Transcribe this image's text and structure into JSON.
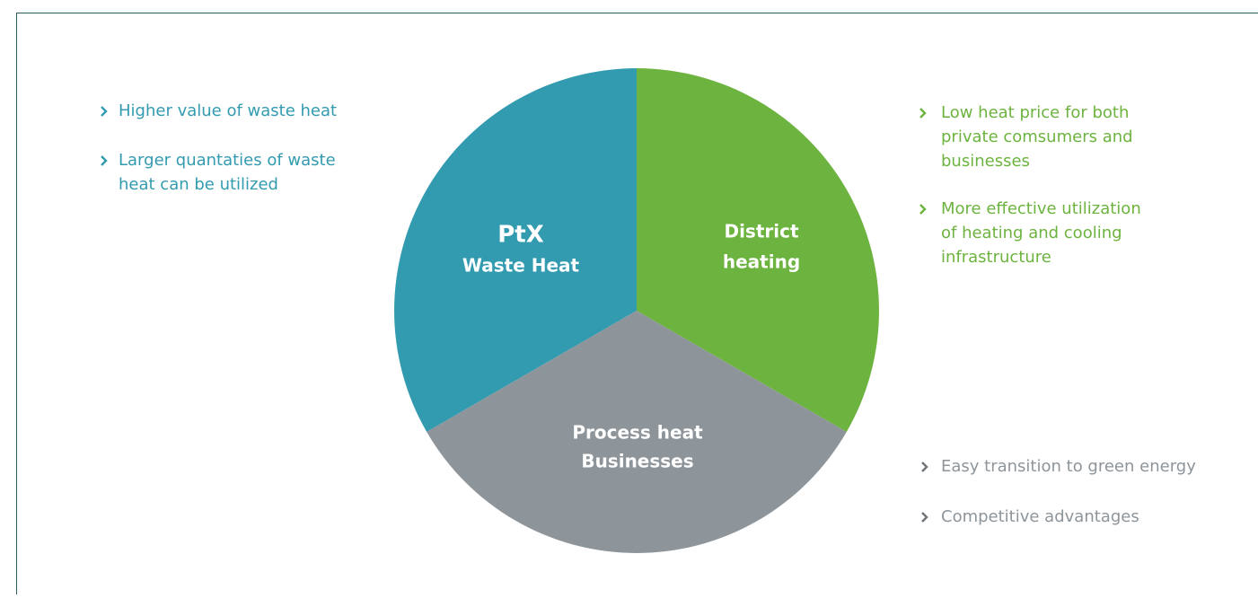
{
  "segments": [
    {
      "lines": [
        "PtX",
        "Waste Heat"
      ]
    },
    {
      "lines": [
        "District",
        "heating"
      ]
    },
    {
      "lines": [
        "Process heat",
        "Businesses"
      ]
    }
  ],
  "lists": [
    {
      "bullets": [
        [
          "Higher value of waste heat"
        ],
        [
          "Larger quantaties of waste",
          "heat can be utilized"
        ]
      ]
    },
    {
      "bullets": [
        [
          "Low heat price for both",
          "private comsumers and",
          "businesses"
        ],
        [
          "More effective utilization",
          "of heating and cooling",
          "infrastructure"
        ]
      ]
    },
    {
      "bullets": [
        [
          "Easy transition to green energy"
        ],
        [
          "Competitive advantages"
        ]
      ]
    }
  ]
}
